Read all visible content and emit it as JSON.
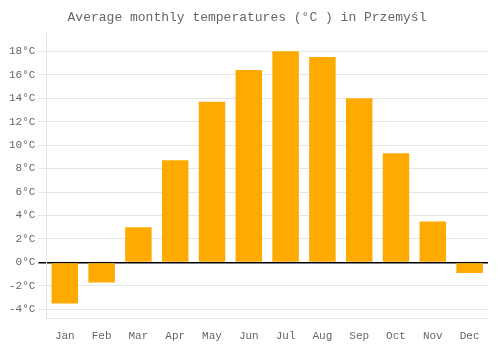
{
  "chart_data": {
    "type": "bar",
    "title": "Average monthly temperatures (°C ) in Przemyśl",
    "categories": [
      "Jan",
      "Feb",
      "Mar",
      "Apr",
      "May",
      "Jun",
      "Jul",
      "Aug",
      "Sep",
      "Oct",
      "Nov",
      "Dec"
    ],
    "values": [
      -3.5,
      -1.7,
      3.0,
      8.7,
      13.7,
      16.4,
      18.0,
      17.5,
      14.0,
      9.3,
      3.5,
      -0.9
    ],
    "color": "#FFAA00",
    "ylim": [
      -4.8,
      19.5
    ],
    "yticks": [
      {
        "value": -4,
        "label": "-4°C"
      },
      {
        "value": -2,
        "label": "-2°C"
      },
      {
        "value": 0,
        "label": "0°C"
      },
      {
        "value": 2,
        "label": "2°C"
      },
      {
        "value": 4,
        "label": "4°C"
      },
      {
        "value": 6,
        "label": "6°C"
      },
      {
        "value": 8,
        "label": "8°C"
      },
      {
        "value": 10,
        "label": "10°C"
      },
      {
        "value": 12,
        "label": "12°C"
      },
      {
        "value": 14,
        "label": "14°C"
      },
      {
        "value": 16,
        "label": "16°C"
      },
      {
        "value": 18,
        "label": "18°C"
      }
    ],
    "grid": true
  }
}
